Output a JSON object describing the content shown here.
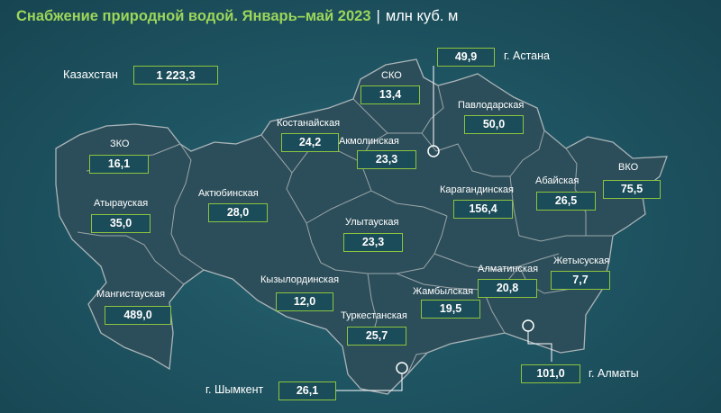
{
  "title": {
    "main": "Снабжение природной водой. Январь–май 2023",
    "separator": "|",
    "unit": "млн куб. м"
  },
  "total": {
    "label": "Казахстан",
    "value": "1 223,3"
  },
  "regions": {
    "zko": {
      "name": "ЗКО",
      "value": "16,1"
    },
    "atyrau": {
      "name": "Атырауская",
      "value": "35,0"
    },
    "mangystau": {
      "name": "Мангистауская",
      "value": "489,0"
    },
    "aktobe": {
      "name": "Актюбинская",
      "value": "28,0"
    },
    "kostanay": {
      "name": "Костанайская",
      "value": "24,2"
    },
    "sko": {
      "name": "СКО",
      "value": "13,4"
    },
    "akmola": {
      "name": "Акмолинская",
      "value": "23,3"
    },
    "pavlodar": {
      "name": "Павлодарская",
      "value": "50,0"
    },
    "vko": {
      "name": "ВКО",
      "value": "75,5"
    },
    "abay": {
      "name": "Абайская",
      "value": "26,5"
    },
    "karaganda": {
      "name": "Карагандинская",
      "value": "156,4"
    },
    "ulytau": {
      "name": "Улытауская",
      "value": "23,3"
    },
    "kyzylorda": {
      "name": "Кызылординская",
      "value": "12,0"
    },
    "turkestan": {
      "name": "Туркестанская",
      "value": "25,7"
    },
    "zhambyl": {
      "name": "Жамбылская",
      "value": "19,5"
    },
    "almaty_reg": {
      "name": "Алматинская",
      "value": "20,8"
    },
    "zhetysu": {
      "name": "Жетысуская",
      "value": "7,7"
    }
  },
  "cities": {
    "astana": {
      "name": "г. Астана",
      "value": "49,9"
    },
    "shymkent": {
      "name": "г. Шымкент",
      "value": "26,1"
    },
    "almaty": {
      "name": "г. Алматы",
      "value": "101,0"
    }
  },
  "colors": {
    "title": "#9cd65a",
    "box_border": "#8cc43f",
    "country_fill": "#2c4e5a",
    "border_lines": "#aab4b8"
  }
}
